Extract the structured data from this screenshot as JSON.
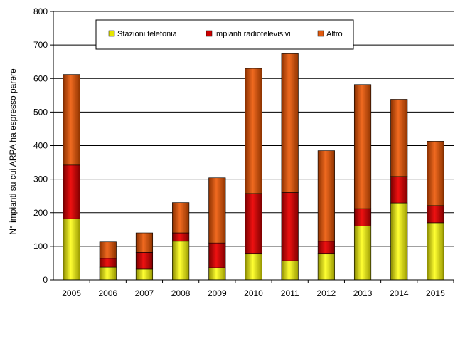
{
  "chart_data": {
    "type": "bar",
    "stacked": true,
    "title": "",
    "xlabel": "",
    "ylabel": "N° impianti su cui ARPA ha espresso parere",
    "ylim": [
      0,
      800
    ],
    "yticks": [
      0,
      100,
      200,
      300,
      400,
      500,
      600,
      700,
      800
    ],
    "grid": true,
    "legend_position": "top-center",
    "categories": [
      "2005",
      "2006",
      "2007",
      "2008",
      "2009",
      "2010",
      "2011",
      "2012",
      "2013",
      "2014",
      "2015"
    ],
    "series": [
      {
        "name": "Stazioni telefonia",
        "color": "#e6e600",
        "values": [
          182,
          38,
          32,
          115,
          36,
          77,
          57,
          77,
          160,
          229,
          170
        ]
      },
      {
        "name": "Impianti radiotelevisivi",
        "color": "#cc0000",
        "values": [
          160,
          26,
          50,
          25,
          74,
          180,
          203,
          38,
          52,
          79,
          51
        ]
      },
      {
        "name": "Altro",
        "color": "#e05a10",
        "values": [
          270,
          49,
          58,
          90,
          194,
          373,
          414,
          270,
          370,
          230,
          192
        ]
      }
    ]
  }
}
